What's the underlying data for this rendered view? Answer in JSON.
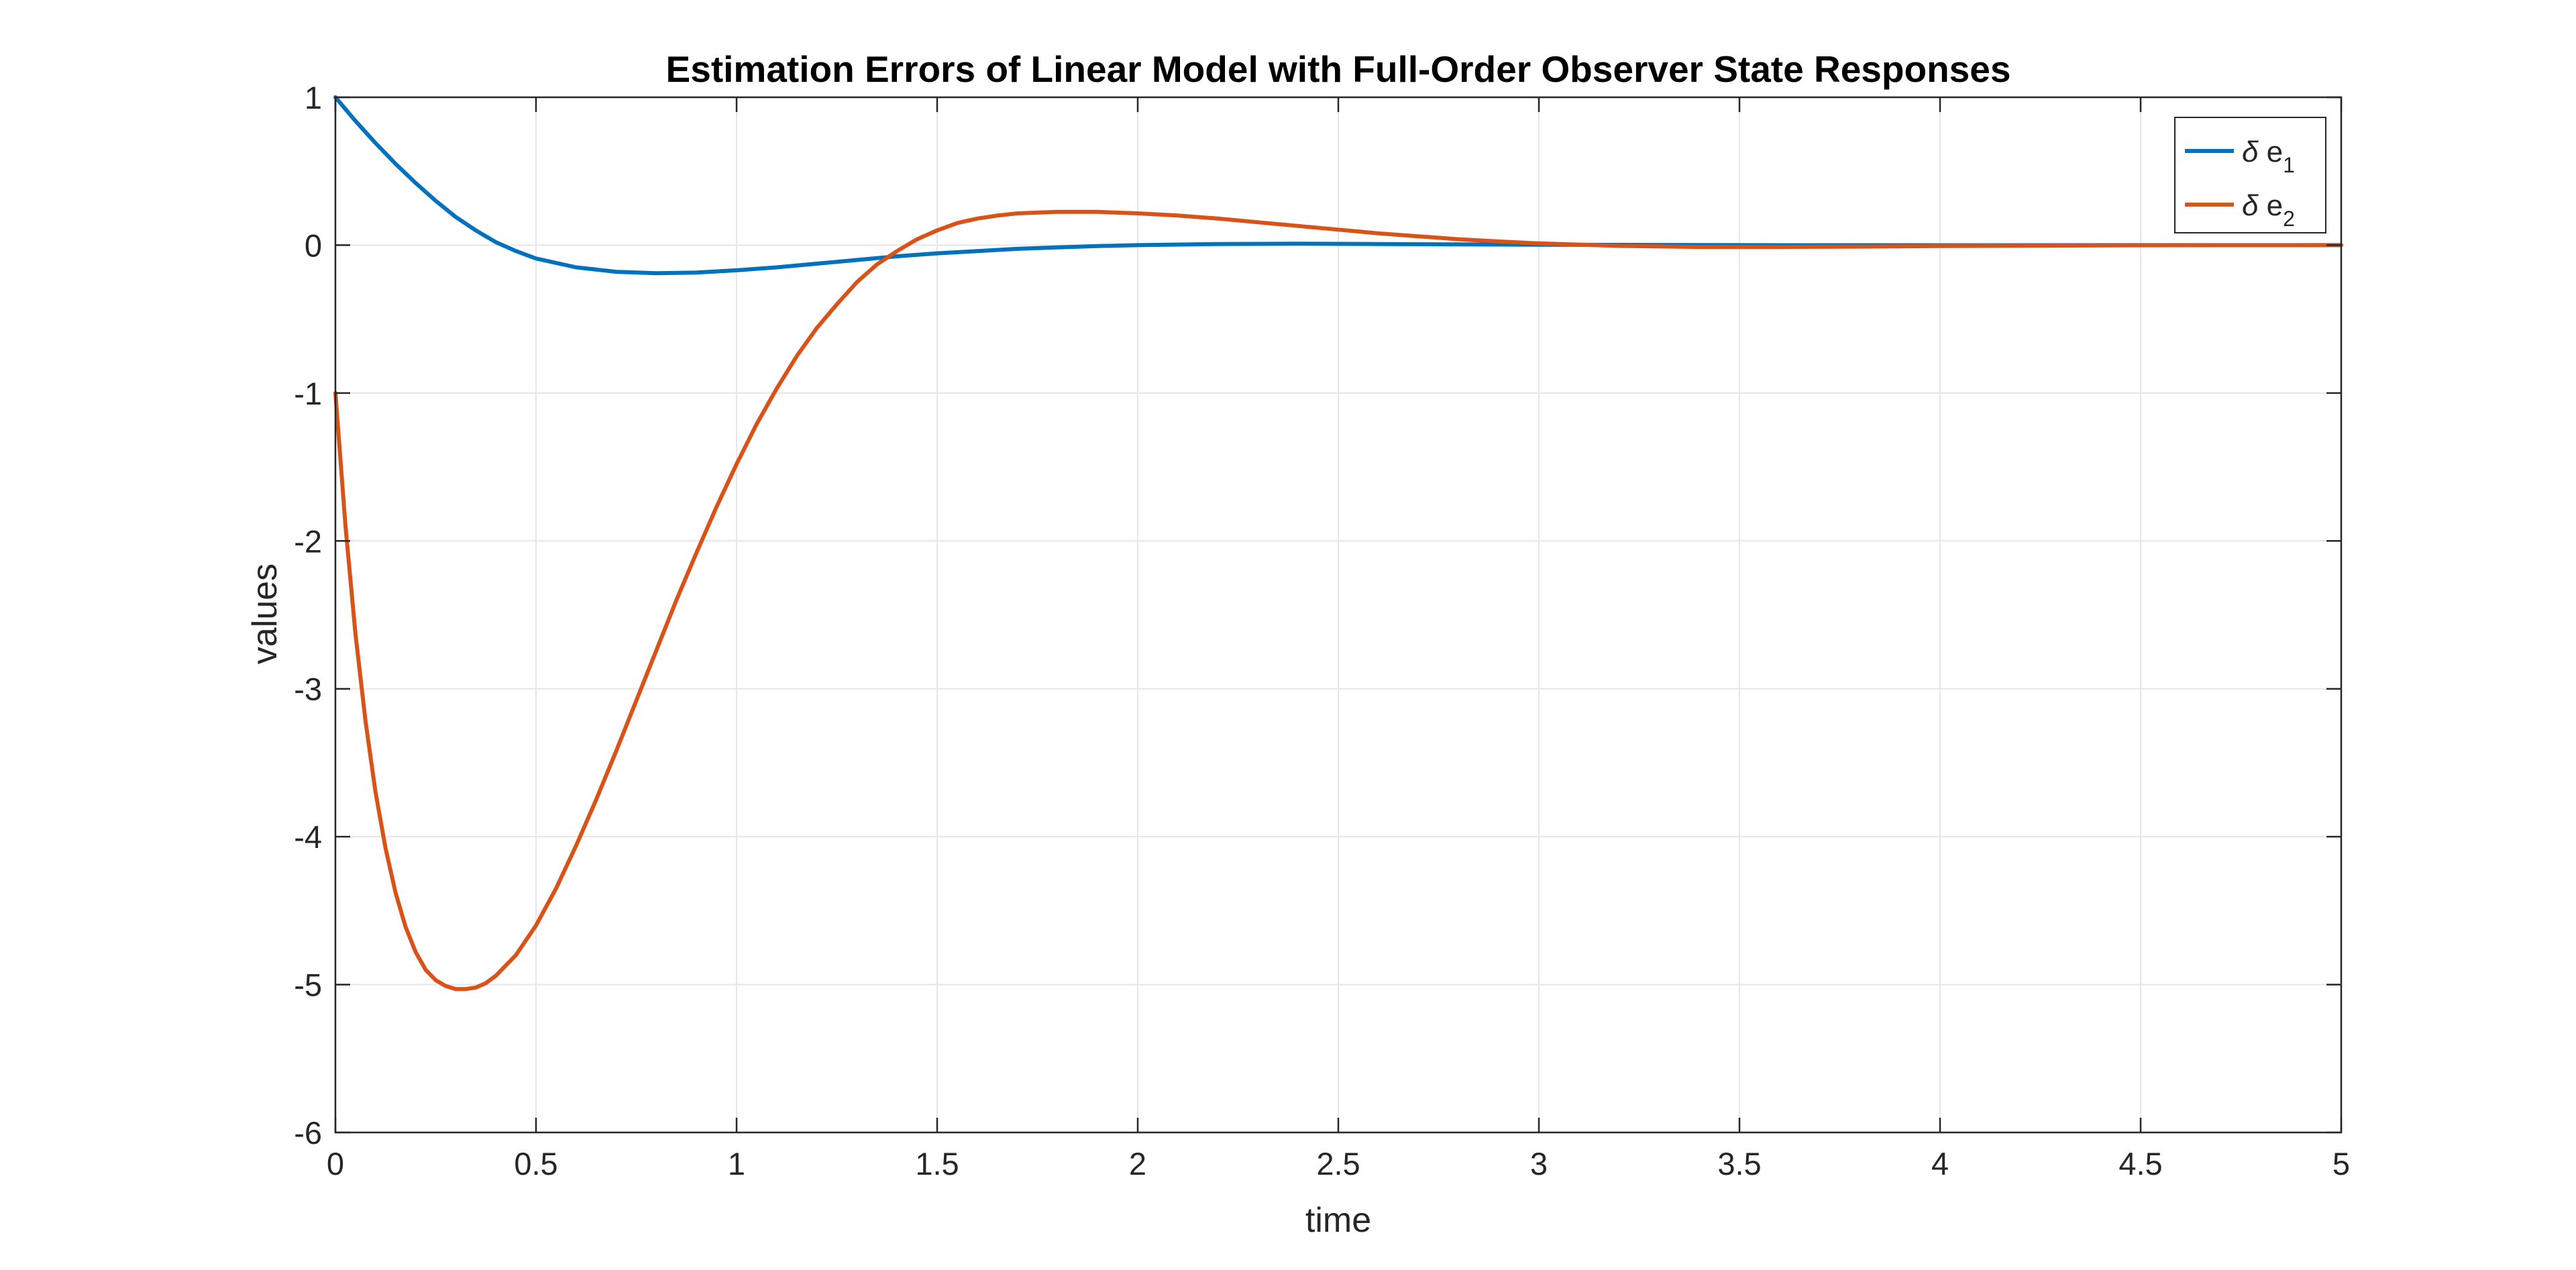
{
  "chart_data": {
    "type": "line",
    "title": "Estimation Errors of Linear Model with Full-Order Observer State Responses",
    "xlabel": "time",
    "ylabel": "values",
    "xlim": [
      0,
      5
    ],
    "ylim": [
      -6,
      1
    ],
    "xticks": [
      0,
      0.5,
      1,
      1.5,
      2,
      2.5,
      3,
      3.5,
      4,
      4.5,
      5
    ],
    "xtick_labels": [
      "0",
      "0.5",
      "1",
      "1.5",
      "2",
      "2.5",
      "3",
      "3.5",
      "4",
      "4.5",
      "5"
    ],
    "yticks": [
      1,
      0,
      -1,
      -2,
      -3,
      -4,
      -5,
      -6
    ],
    "ytick_labels": [
      "1",
      "0",
      "-1",
      "-2",
      "-3",
      "-4",
      "-5",
      "-6"
    ],
    "grid": true,
    "box": true,
    "legend_position": "top-right",
    "series": [
      {
        "name": "δ e1",
        "legend_symbol": "δ",
        "legend_base": "e",
        "legend_sub": "1",
        "color": "#0072BD",
        "x": [
          0,
          0.05,
          0.1,
          0.15,
          0.2,
          0.25,
          0.3,
          0.35,
          0.4,
          0.45,
          0.5,
          0.6,
          0.7,
          0.8,
          0.9,
          1.0,
          1.1,
          1.2,
          1.3,
          1.4,
          1.5,
          1.6,
          1.7,
          1.8,
          1.9,
          2.0,
          2.2,
          2.4,
          2.6,
          2.8,
          3.0,
          3.5,
          4.0,
          4.5,
          5.0
        ],
        "y": [
          1,
          0.84,
          0.69,
          0.55,
          0.42,
          0.3,
          0.19,
          0.1,
          0.02,
          -0.04,
          -0.09,
          -0.15,
          -0.18,
          -0.19,
          -0.185,
          -0.17,
          -0.15,
          -0.125,
          -0.1,
          -0.075,
          -0.055,
          -0.04,
          -0.025,
          -0.015,
          -0.006,
          0.0,
          0.008,
          0.01,
          0.008,
          0.005,
          0.003,
          0.0,
          -0.001,
          0.0,
          0.0
        ]
      },
      {
        "name": "δ e2",
        "legend_symbol": "δ",
        "legend_base": "e",
        "legend_sub": "2",
        "color": "#D95319",
        "x": [
          0,
          0.025,
          0.05,
          0.075,
          0.1,
          0.125,
          0.15,
          0.175,
          0.2,
          0.225,
          0.25,
          0.275,
          0.3,
          0.325,
          0.35,
          0.375,
          0.4,
          0.45,
          0.5,
          0.55,
          0.6,
          0.65,
          0.7,
          0.75,
          0.8,
          0.85,
          0.9,
          0.95,
          1.0,
          1.05,
          1.1,
          1.15,
          1.2,
          1.25,
          1.3,
          1.35,
          1.4,
          1.45,
          1.5,
          1.55,
          1.6,
          1.65,
          1.7,
          1.8,
          1.9,
          2.0,
          2.1,
          2.2,
          2.3,
          2.4,
          2.5,
          2.6,
          2.7,
          2.8,
          2.9,
          3.0,
          3.2,
          3.4,
          3.6,
          3.8,
          4.0,
          4.5,
          5.0
        ],
        "y": [
          -1.0,
          -1.9,
          -2.63,
          -3.22,
          -3.7,
          -4.08,
          -4.38,
          -4.61,
          -4.78,
          -4.9,
          -4.97,
          -5.01,
          -5.03,
          -5.03,
          -5.02,
          -4.99,
          -4.94,
          -4.8,
          -4.6,
          -4.35,
          -4.06,
          -3.75,
          -3.42,
          -3.08,
          -2.74,
          -2.4,
          -2.08,
          -1.77,
          -1.48,
          -1.21,
          -0.97,
          -0.75,
          -0.56,
          -0.4,
          -0.25,
          -0.13,
          -0.04,
          0.04,
          0.1,
          0.15,
          0.18,
          0.2,
          0.215,
          0.225,
          0.225,
          0.215,
          0.2,
          0.18,
          0.155,
          0.13,
          0.105,
          0.08,
          0.06,
          0.04,
          0.025,
          0.012,
          -0.005,
          -0.012,
          -0.012,
          -0.01,
          -0.006,
          -0.001,
          0.0
        ]
      }
    ]
  }
}
